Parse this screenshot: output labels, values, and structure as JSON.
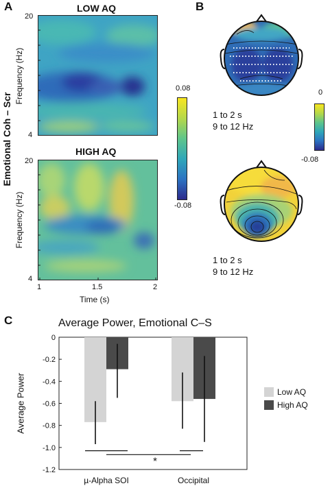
{
  "panels": {
    "a": "A",
    "b": "B",
    "c": "C"
  },
  "panel_a": {
    "side_label": "Emotional Coh – Scr",
    "top_title": "LOW AQ",
    "bottom_title": "HIGH AQ",
    "ylabel": "Frequency (Hz)",
    "ytick_top": "20",
    "ytick_bottom": "4",
    "xlabel": "Time (s)",
    "xticks": [
      "1",
      "1.5",
      "2"
    ],
    "colorbar_max": "0.08",
    "colorbar_min": "-0.08"
  },
  "panel_b": {
    "caption_top_line1": "1 to 2 s",
    "caption_top_line2": "9 to 12 Hz",
    "caption_bottom_line1": "1 to 2 s",
    "caption_bottom_line2": "9 to 12 Hz",
    "colorbar_max": "0",
    "colorbar_min": "-0.08"
  },
  "chart_data": {
    "type": "bar",
    "title": "Average  Power, Emotional C–S",
    "ylabel": "Average Power",
    "xlabel": "",
    "categories": [
      "µ-Alpha SOI",
      "Occipital"
    ],
    "series": [
      {
        "name": "Low AQ",
        "values": [
          -0.77,
          -0.58
        ],
        "err_low": [
          -0.97,
          -0.83
        ],
        "err_high": [
          -0.58,
          -0.32
        ],
        "color": "#d4d4d4"
      },
      {
        "name": "High AQ",
        "values": [
          -0.29,
          -0.56
        ],
        "err_low": [
          -0.55,
          -0.95
        ],
        "err_high": [
          -0.06,
          -0.17
        ],
        "color": "#4a4a4a"
      }
    ],
    "ylim": [
      -1.2,
      0
    ],
    "yticks": [
      "0",
      "-0.2",
      "-0.4",
      "-0.6",
      "-0.8",
      "-1.0",
      "-1.2"
    ],
    "ytick_values": [
      0,
      -0.2,
      -0.4,
      -0.6,
      -0.8,
      -1.0,
      -1.2
    ],
    "significance": "*",
    "legend_position": "right"
  }
}
